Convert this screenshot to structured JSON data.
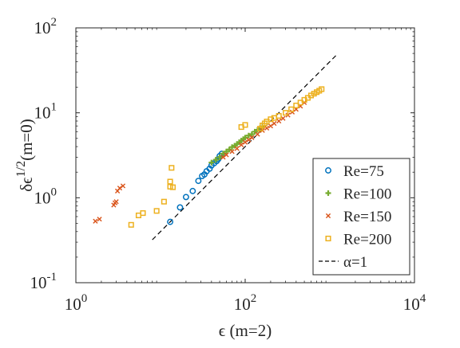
{
  "chart_data": {
    "type": "scatter",
    "title": "",
    "xlabel": "ϵ (m=2)",
    "ylabel_main": "δϵ",
    "ylabel_exp": "1/2",
    "ylabel_tail": "(m=0)",
    "xscale": "log",
    "yscale": "log",
    "xlim": [
      1,
      10000
    ],
    "ylim": [
      0.1,
      100
    ],
    "x_ticks": [
      {
        "value": 1,
        "base": "10",
        "exp": "0"
      },
      {
        "value": 100,
        "base": "10",
        "exp": "2"
      },
      {
        "value": 10000,
        "base": "10",
        "exp": "4"
      }
    ],
    "y_ticks": [
      {
        "value": 0.1,
        "base": "10",
        "exp": "-1"
      },
      {
        "value": 1,
        "base": "10",
        "exp": "0"
      },
      {
        "value": 10,
        "base": "10",
        "exp": "1"
      },
      {
        "value": 100,
        "base": "10",
        "exp": "2"
      }
    ],
    "grid": false,
    "legend_position": "bottom-right",
    "series": [
      {
        "name": "Re=75",
        "marker": "circle",
        "color": "#0072BD",
        "x": [
          13,
          17,
          20,
          24,
          28,
          31,
          33,
          35,
          38,
          40,
          43,
          46,
          48,
          50,
          53
        ],
        "y": [
          0.52,
          0.77,
          1.02,
          1.2,
          1.58,
          1.8,
          1.88,
          2.05,
          2.2,
          2.4,
          2.55,
          2.7,
          2.85,
          3.1,
          3.3
        ]
      },
      {
        "name": "Re=100",
        "marker": "plus",
        "color": "#77AC30",
        "x": [
          40,
          45,
          50,
          55,
          60,
          65,
          70,
          75,
          80,
          85,
          90,
          95,
          100,
          110,
          120,
          130,
          140,
          150,
          160
        ],
        "y": [
          2.6,
          2.8,
          3.0,
          3.3,
          3.5,
          3.7,
          3.95,
          4.1,
          4.3,
          4.5,
          4.7,
          4.9,
          5.1,
          5.4,
          5.6,
          6.0,
          6.3,
          6.6,
          6.9
        ]
      },
      {
        "name": "Re=150",
        "marker": "cross",
        "color": "#D95319",
        "x": [
          1.7,
          1.9,
          2.8,
          2.9,
          3.0,
          3.1,
          3.3,
          3.6,
          55,
          60,
          70,
          80,
          90,
          100,
          110,
          120,
          140,
          160,
          180,
          200,
          220,
          250,
          280,
          320,
          360,
          400,
          450,
          500
        ],
        "y": [
          0.53,
          0.56,
          0.82,
          0.87,
          0.9,
          1.2,
          1.3,
          1.38,
          3.0,
          3.2,
          3.5,
          3.8,
          4.2,
          4.5,
          4.8,
          5.1,
          5.6,
          6.2,
          6.6,
          7.0,
          7.5,
          8.0,
          8.6,
          9.4,
          10.2,
          11.0,
          12.0,
          13.2
        ]
      },
      {
        "name": "Re=200",
        "marker": "square",
        "color": "#EDB120",
        "x": [
          4.5,
          5.5,
          6.2,
          9,
          11,
          13,
          13,
          13.5,
          14,
          90,
          100,
          150,
          160,
          170,
          180,
          200,
          220,
          250,
          300,
          350,
          400,
          450,
          500,
          550,
          600,
          650,
          700,
          750,
          800
        ],
        "y": [
          0.48,
          0.62,
          0.66,
          0.7,
          0.9,
          1.35,
          1.55,
          2.25,
          1.33,
          6.8,
          7.2,
          6.5,
          7.1,
          7.5,
          7.9,
          8.4,
          8.7,
          9.2,
          10.0,
          11.0,
          12.2,
          13.2,
          14.2,
          15.0,
          16.0,
          16.8,
          17.5,
          18.2,
          19.0
        ]
      }
    ],
    "reference_line": {
      "name": "α=1",
      "style": "dashed",
      "color": "#000000",
      "x": [
        8,
        1200
      ],
      "y": [
        0.32,
        48
      ]
    }
  }
}
